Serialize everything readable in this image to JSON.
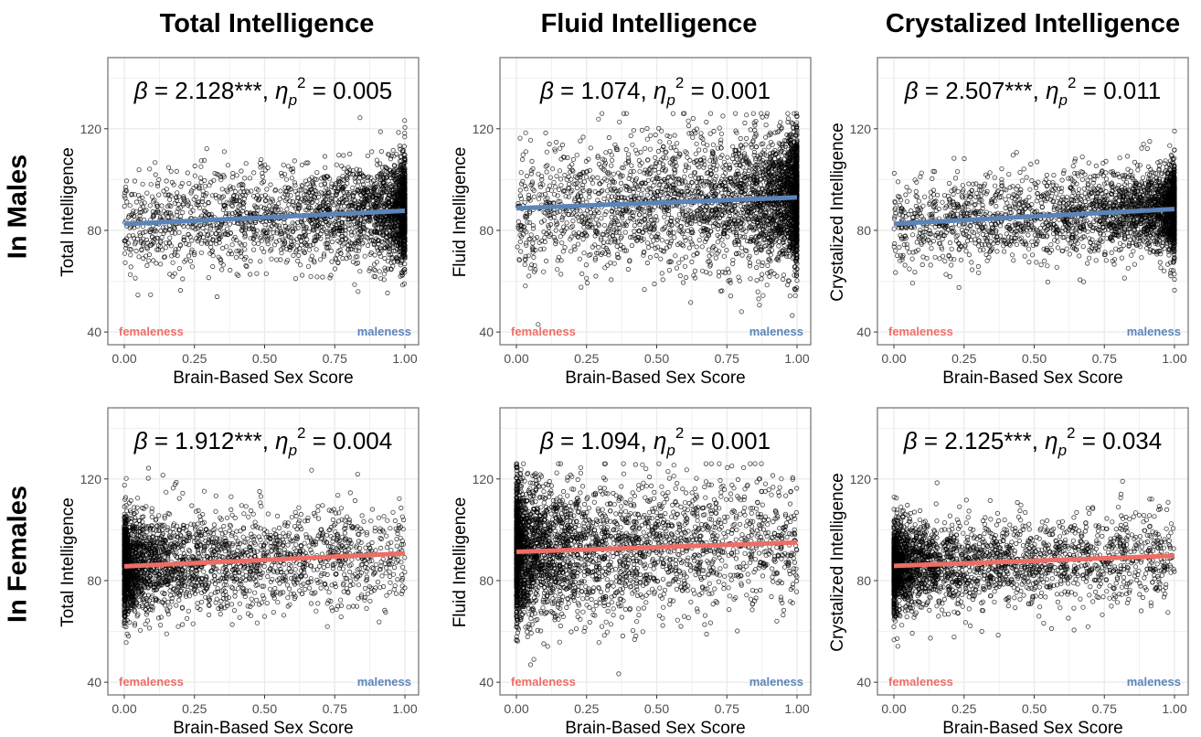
{
  "column_titles": [
    "Total Intelligence",
    "Fluid Intelligence",
    "Crystalized Intelligence"
  ],
  "row_titles": [
    "In Males",
    "In Females"
  ],
  "colors": {
    "male": "#5b84b9",
    "female": "#ec6e66",
    "point": "#000000",
    "grid": "#ebebeb",
    "frame": "#6e6e6e"
  },
  "chart_data": [
    {
      "type": "scatter",
      "group": "In Males",
      "measure": "Total Intelligence",
      "annotation": {
        "beta": "2.128",
        "sig": "***",
        "eta_p2": "0.005"
      },
      "xlabel": "Brain-Based Sex Score",
      "ylabel": "Total Intelligence",
      "xlim": [
        0,
        1
      ],
      "ylim": [
        35,
        148
      ],
      "xticks": [
        "0.00",
        "0.25",
        "0.50",
        "0.75",
        "1.00"
      ],
      "yticks": [
        "40",
        "80",
        "120"
      ],
      "fit": {
        "x": [
          0.0,
          1.0
        ],
        "y": [
          82.5,
          87.7
        ],
        "color": "#5b84b9"
      },
      "points": {
        "n": 2600,
        "density": "increasing-to-right",
        "center": 85,
        "spread": 10,
        "seed": 11
      },
      "labels": {
        "left": "femaleness",
        "right": "maleness"
      },
      "grid": true
    },
    {
      "type": "scatter",
      "group": "In Males",
      "measure": "Fluid Intelligence",
      "annotation": {
        "beta": "1.074",
        "sig": "",
        "eta_p2": "0.001"
      },
      "xlabel": "Brain-Based Sex Score",
      "ylabel": "Fluid Intelligence",
      "xlim": [
        0,
        1
      ],
      "ylim": [
        35,
        148
      ],
      "xticks": [
        "0.00",
        "0.25",
        "0.50",
        "0.75",
        "1.00"
      ],
      "yticks": [
        "40",
        "80",
        "120"
      ],
      "fit": {
        "x": [
          0.0,
          1.0
        ],
        "y": [
          88.7,
          93.0
        ],
        "color": "#5b84b9"
      },
      "points": {
        "n": 3200,
        "density": "increasing-to-right",
        "center": 91,
        "spread": 13,
        "seed": 22
      },
      "labels": {
        "left": "femaleness",
        "right": "maleness"
      },
      "grid": true
    },
    {
      "type": "scatter",
      "group": "In Males",
      "measure": "Crystalized Intelligence",
      "annotation": {
        "beta": "2.507",
        "sig": "***",
        "eta_p2": "0.011"
      },
      "xlabel": "Brain-Based Sex Score",
      "ylabel": "Crystalized Intelligence",
      "xlim": [
        0,
        1
      ],
      "ylim": [
        35,
        148
      ],
      "xticks": [
        "0.00",
        "0.25",
        "0.50",
        "0.75",
        "1.00"
      ],
      "yticks": [
        "40",
        "80",
        "120"
      ],
      "fit": {
        "x": [
          0.0,
          1.0
        ],
        "y": [
          82.6,
          88.4
        ],
        "color": "#5b84b9"
      },
      "points": {
        "n": 2700,
        "density": "increasing-to-right",
        "center": 85.5,
        "spread": 8.5,
        "seed": 33
      },
      "labels": {
        "left": "femaleness",
        "right": "maleness"
      },
      "grid": true
    },
    {
      "type": "scatter",
      "group": "In Females",
      "measure": "Total Intelligence",
      "annotation": {
        "beta": "1.912",
        "sig": "***",
        "eta_p2": "0.004"
      },
      "xlabel": "Brain-Based Sex Score",
      "ylabel": "Total Intelligence",
      "xlim": [
        0,
        1
      ],
      "ylim": [
        35,
        148
      ],
      "xticks": [
        "0.00",
        "0.25",
        "0.50",
        "0.75",
        "1.00"
      ],
      "yticks": [
        "40",
        "80",
        "120"
      ],
      "fit": {
        "x": [
          0.0,
          1.0
        ],
        "y": [
          85.6,
          90.7
        ],
        "color": "#ec6e66"
      },
      "points": {
        "n": 2600,
        "density": "increasing-to-left",
        "center": 87,
        "spread": 10,
        "seed": 44
      },
      "labels": {
        "left": "femaleness",
        "right": "maleness"
      },
      "grid": true
    },
    {
      "type": "scatter",
      "group": "In Females",
      "measure": "Fluid Intelligence",
      "annotation": {
        "beta": "1.094",
        "sig": "",
        "eta_p2": "0.001"
      },
      "xlabel": "Brain-Based Sex Score",
      "ylabel": "Fluid Intelligence",
      "xlim": [
        0,
        1
      ],
      "ylim": [
        35,
        148
      ],
      "xticks": [
        "0.00",
        "0.25",
        "0.50",
        "0.75",
        "1.00"
      ],
      "yticks": [
        "40",
        "80",
        "120"
      ],
      "fit": {
        "x": [
          0.0,
          1.0
        ],
        "y": [
          91.3,
          95.0
        ],
        "color": "#ec6e66"
      },
      "points": {
        "n": 3200,
        "density": "increasing-to-left",
        "center": 93,
        "spread": 13,
        "seed": 55
      },
      "labels": {
        "left": "femaleness",
        "right": "maleness"
      },
      "grid": true
    },
    {
      "type": "scatter",
      "group": "In Females",
      "measure": "Crystalized Intelligence",
      "annotation": {
        "beta": "2.125",
        "sig": "***",
        "eta_p2": "0.034"
      },
      "xlabel": "Brain-Based Sex Score",
      "ylabel": "Crystalized Intelligence",
      "xlim": [
        0,
        1
      ],
      "ylim": [
        35,
        148
      ],
      "xticks": [
        "0.00",
        "0.25",
        "0.50",
        "0.75",
        "1.00"
      ],
      "yticks": [
        "40",
        "80",
        "120"
      ],
      "fit": {
        "x": [
          0.0,
          1.0
        ],
        "y": [
          85.8,
          89.8
        ],
        "color": "#ec6e66"
      },
      "points": {
        "n": 2700,
        "density": "increasing-to-left",
        "center": 87,
        "spread": 8.5,
        "seed": 66
      },
      "labels": {
        "left": "femaleness",
        "right": "maleness"
      },
      "grid": true
    }
  ]
}
